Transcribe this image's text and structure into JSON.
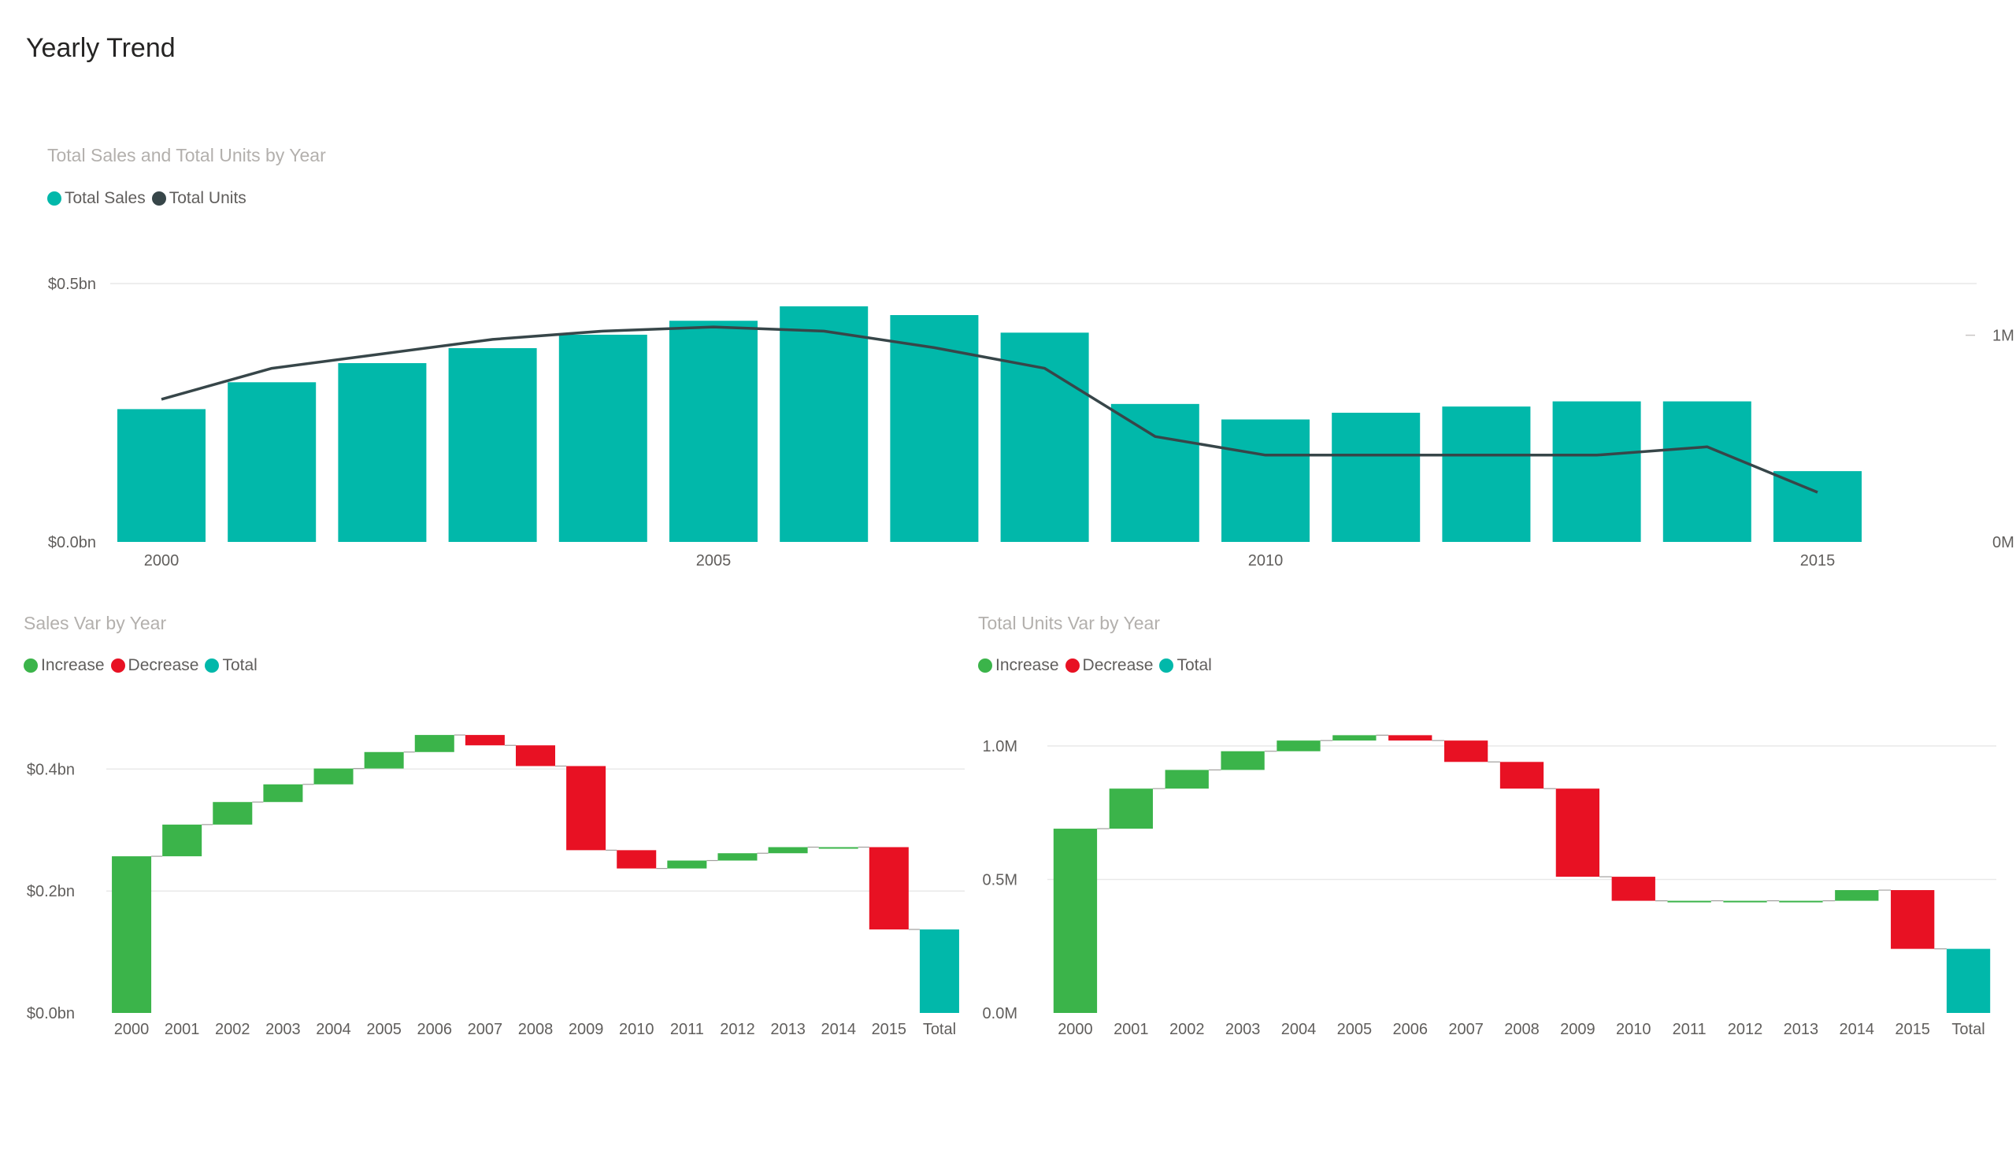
{
  "page_title": "Yearly Trend",
  "chart_data": [
    {
      "type": "bar",
      "title": "Total Sales and Total Units by Year",
      "legend_placement": "top-left",
      "grid": true,
      "categories": [
        2000,
        2001,
        2002,
        2003,
        2004,
        2005,
        2006,
        2007,
        2008,
        2009,
        2010,
        2011,
        2012,
        2013,
        2014,
        2015
      ],
      "x_ticks": [
        {
          "value": 2000,
          "label": "2000"
        },
        {
          "value": 2005,
          "label": "2005"
        },
        {
          "value": 2010,
          "label": "2010"
        },
        {
          "value": 2015,
          "label": "2015"
        }
      ],
      "y_ticks": [
        {
          "value": 0,
          "label": "$0.0bn"
        },
        {
          "value": 0.5,
          "label": "$0.5bn"
        }
      ],
      "y2_ticks": [
        {
          "value": 0,
          "label": "0M"
        },
        {
          "value": 1,
          "label": "1M"
        }
      ],
      "ylim": [
        0,
        0.5
      ],
      "y2lim": [
        0,
        1.25
      ],
      "series": [
        {
          "name": "Total Sales",
          "kind": "bar",
          "color": "#01b8aa",
          "values": [
            0.257,
            0.309,
            0.346,
            0.375,
            0.401,
            0.428,
            0.456,
            0.439,
            0.405,
            0.267,
            0.237,
            0.25,
            0.262,
            0.272,
            0.272,
            0.137
          ]
        },
        {
          "name": "Total Units",
          "kind": "line",
          "axis": "y2",
          "color": "#374649",
          "values": [
            0.69,
            0.84,
            0.91,
            0.98,
            1.02,
            1.04,
            1.02,
            0.94,
            0.84,
            0.51,
            0.42,
            0.42,
            0.42,
            0.42,
            0.46,
            0.24
          ]
        }
      ]
    },
    {
      "type": "waterfall",
      "title": "Sales Var by Year",
      "legend": [
        {
          "name": "Increase",
          "color": "#3bb44a"
        },
        {
          "name": "Decrease",
          "color": "#e81123"
        },
        {
          "name": "Total",
          "color": "#01b8aa"
        }
      ],
      "categories": [
        "2000",
        "2001",
        "2002",
        "2003",
        "2004",
        "2005",
        "2006",
        "2007",
        "2008",
        "2009",
        "2010",
        "2011",
        "2012",
        "2013",
        "2014",
        "2015",
        "Total"
      ],
      "levels": [
        0,
        0.257,
        0.309,
        0.346,
        0.375,
        0.401,
        0.428,
        0.456,
        0.439,
        0.405,
        0.267,
        0.237,
        0.25,
        0.262,
        0.272,
        0.272,
        0.137
      ],
      "total": 0.137,
      "ylim": [
        0,
        0.46
      ],
      "y_ticks": [
        {
          "value": 0,
          "label": "$0.0bn"
        },
        {
          "value": 0.2,
          "label": "$0.2bn"
        },
        {
          "value": 0.4,
          "label": "$0.4bn"
        }
      ]
    },
    {
      "type": "waterfall",
      "title": "Total Units Var by Year",
      "legend": [
        {
          "name": "Increase",
          "color": "#3bb44a"
        },
        {
          "name": "Decrease",
          "color": "#e81123"
        },
        {
          "name": "Total",
          "color": "#01b8aa"
        }
      ],
      "categories": [
        "2000",
        "2001",
        "2002",
        "2003",
        "2004",
        "2005",
        "2006",
        "2007",
        "2008",
        "2009",
        "2010",
        "2011",
        "2012",
        "2013",
        "2014",
        "2015",
        "Total"
      ],
      "levels": [
        0,
        0.69,
        0.84,
        0.91,
        0.98,
        1.02,
        1.04,
        1.02,
        0.94,
        0.84,
        0.51,
        0.42,
        0.42,
        0.42,
        0.42,
        0.46,
        0.24
      ],
      "total": 0.24,
      "ylim": [
        0,
        1.05
      ],
      "y_ticks": [
        {
          "value": 0,
          "label": "0.0M"
        },
        {
          "value": 0.5,
          "label": "0.5M"
        },
        {
          "value": 1,
          "label": "1.0M"
        }
      ]
    }
  ]
}
